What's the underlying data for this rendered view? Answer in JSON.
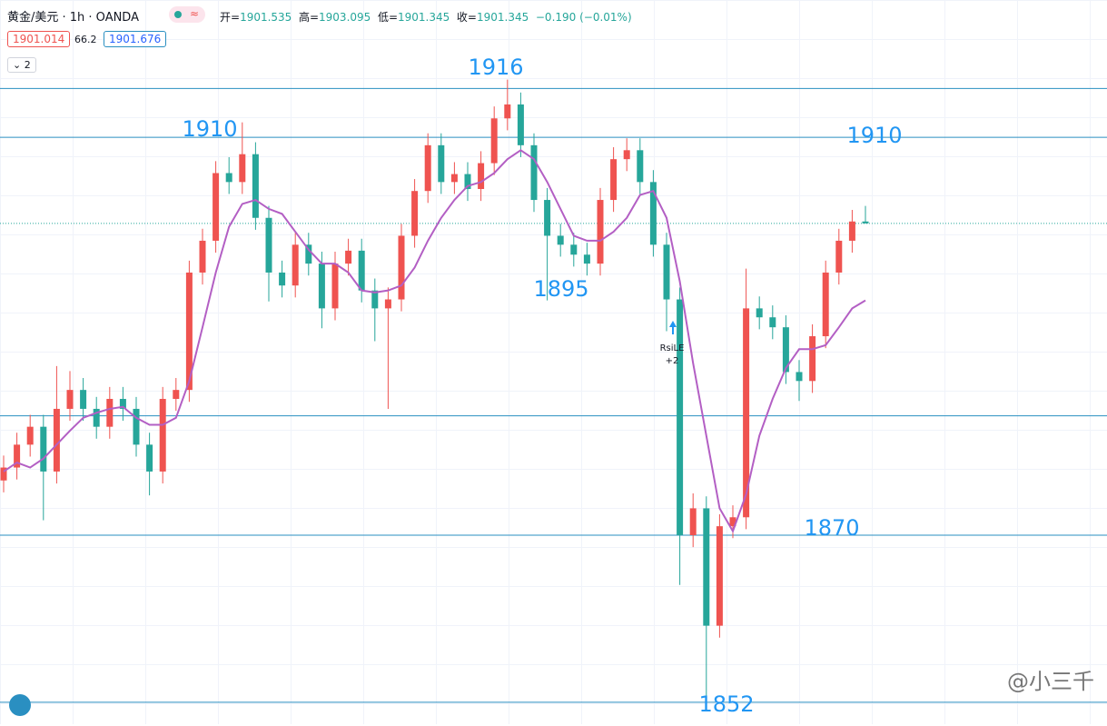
{
  "header": {
    "title": "黄金/美元 · 1h · OANDA",
    "status_icon": "≈",
    "open_label": "开=",
    "high_label": "高=",
    "low_label": "低=",
    "close_label": "收=",
    "change": "−0.190 (−0.01%)",
    "indicators": [
      "1901.014",
      "66.2",
      "1901.676"
    ],
    "collapse": "2"
  },
  "chart_data": {
    "type": "candlestick",
    "up_color": "#ef5350",
    "down_color": "#26a69a",
    "open": [
      1875.5,
      1876.8,
      1879.1,
      1880.9,
      1876.4,
      1882.7,
      1884.6,
      1882.7,
      1880.9,
      1883.7,
      1882.7,
      1879.1,
      1876.4,
      1883.7,
      1884.6,
      1896.4,
      1899.6,
      1906.4,
      1905.5,
      1908.3,
      1901.9,
      1896.4,
      1895.1,
      1899.2,
      1897.3,
      1892.8,
      1897.3,
      1898.6,
      1894.6,
      1892.8,
      1893.7,
      1900.1,
      1904.6,
      1909.2,
      1905.5,
      1906.3,
      1904.8,
      1907.4,
      1911.9,
      1913.3,
      1909.2,
      1903.7,
      1900.1,
      1899.2,
      1898.2,
      1897.3,
      1903.7,
      1907.8,
      1908.7,
      1905.5,
      1899.2,
      1893.7,
      1870.0,
      1872.7,
      1860.9,
      1870.9,
      1871.8,
      1892.8,
      1891.9,
      1890.9,
      1886.4,
      1885.5,
      1890.0,
      1896.4,
      1899.6,
      1901.535
    ],
    "high": [
      1878.0,
      1880.3,
      1882.1,
      1882.1,
      1887.0,
      1886.5,
      1885.8,
      1883.9,
      1884.9,
      1884.9,
      1883.9,
      1880.3,
      1884.9,
      1885.8,
      1897.6,
      1900.8,
      1907.6,
      1908.0,
      1911.5,
      1909.5,
      1903.1,
      1897.6,
      1900.4,
      1900.4,
      1898.5,
      1898.5,
      1899.8,
      1899.8,
      1895.8,
      1894.9,
      1901.3,
      1905.8,
      1910.4,
      1910.4,
      1907.5,
      1907.5,
      1908.6,
      1913.1,
      1915.8,
      1914.5,
      1910.4,
      1904.9,
      1901.3,
      1900.4,
      1899.4,
      1904.9,
      1909.0,
      1909.9,
      1909.9,
      1906.7,
      1900.4,
      1894.9,
      1874.2,
      1873.9,
      1872.1,
      1873.0,
      1896.8,
      1894.0,
      1893.1,
      1892.1,
      1887.6,
      1891.2,
      1897.6,
      1900.8,
      1902.7,
      1903.095
    ],
    "low": [
      1874.3,
      1875.6,
      1877.9,
      1871.5,
      1875.2,
      1881.5,
      1881.5,
      1879.7,
      1879.7,
      1881.5,
      1877.9,
      1874.0,
      1875.2,
      1882.5,
      1883.4,
      1895.2,
      1898.4,
      1904.3,
      1904.3,
      1900.7,
      1893.5,
      1893.9,
      1893.9,
      1896.1,
      1890.8,
      1891.6,
      1896.1,
      1893.4,
      1889.5,
      1882.7,
      1892.5,
      1898.9,
      1903.4,
      1904.3,
      1904.3,
      1903.6,
      1903.6,
      1906.2,
      1910.7,
      1908.0,
      1902.5,
      1893.6,
      1898.0,
      1897.0,
      1896.1,
      1896.1,
      1902.5,
      1906.6,
      1904.3,
      1898.0,
      1890.5,
      1865.0,
      1868.8,
      1852.5,
      1859.7,
      1869.7,
      1870.6,
      1890.7,
      1889.7,
      1885.2,
      1883.5,
      1884.3,
      1888.8,
      1895.2,
      1898.4,
      1901.345
    ],
    "close": [
      1876.8,
      1879.1,
      1880.9,
      1876.4,
      1882.7,
      1884.6,
      1882.7,
      1880.9,
      1883.7,
      1882.7,
      1879.1,
      1876.4,
      1883.7,
      1884.6,
      1896.4,
      1899.6,
      1906.4,
      1905.5,
      1908.3,
      1901.9,
      1896.4,
      1895.1,
      1899.2,
      1897.3,
      1892.8,
      1897.3,
      1898.6,
      1894.6,
      1892.8,
      1893.7,
      1900.1,
      1904.6,
      1909.2,
      1905.5,
      1906.3,
      1904.8,
      1907.4,
      1911.9,
      1913.3,
      1909.2,
      1903.7,
      1900.1,
      1899.2,
      1898.2,
      1897.3,
      1903.7,
      1907.8,
      1908.7,
      1905.5,
      1899.2,
      1893.7,
      1870.0,
      1872.7,
      1860.9,
      1870.9,
      1871.8,
      1892.8,
      1891.9,
      1890.9,
      1886.4,
      1885.5,
      1890.0,
      1896.4,
      1899.6,
      1901.535,
      1901.345
    ],
    "ma": {
      "color": "#b35fc4",
      "values": [
        1876.4,
        1877.3,
        1876.8,
        1877.7,
        1879.1,
        1880.5,
        1881.8,
        1882.3,
        1882.7,
        1882.9,
        1881.8,
        1881.1,
        1881.1,
        1881.8,
        1885.5,
        1890.9,
        1896.4,
        1901.0,
        1903.3,
        1903.7,
        1902.8,
        1902.3,
        1900.5,
        1898.7,
        1897.3,
        1897.3,
        1896.4,
        1894.6,
        1894.4,
        1894.6,
        1895.1,
        1896.9,
        1899.6,
        1901.9,
        1903.7,
        1905.1,
        1905.5,
        1906.4,
        1907.8,
        1908.7,
        1907.8,
        1905.5,
        1902.8,
        1900.1,
        1899.6,
        1899.6,
        1900.5,
        1901.9,
        1904.2,
        1904.6,
        1901.9,
        1895.5,
        1887.3,
        1880.0,
        1872.7,
        1870.4,
        1874.1,
        1880.0,
        1883.7,
        1886.8,
        1888.7,
        1888.7,
        1889.1,
        1890.9,
        1892.8,
        1893.6
      ]
    },
    "ylim": [
      1851.0,
      1923.8
    ],
    "levels": {
      "color": "#2a8fc1",
      "values": [
        1914.9,
        1910.0,
        1882.0,
        1870.0,
        1853.2
      ]
    },
    "annotations": [
      "1916",
      "1910",
      "1910",
      "1895",
      "1870",
      "1852"
    ],
    "signal": [
      "RsiLE",
      "+2"
    ],
    "watermark": "@小三千"
  }
}
